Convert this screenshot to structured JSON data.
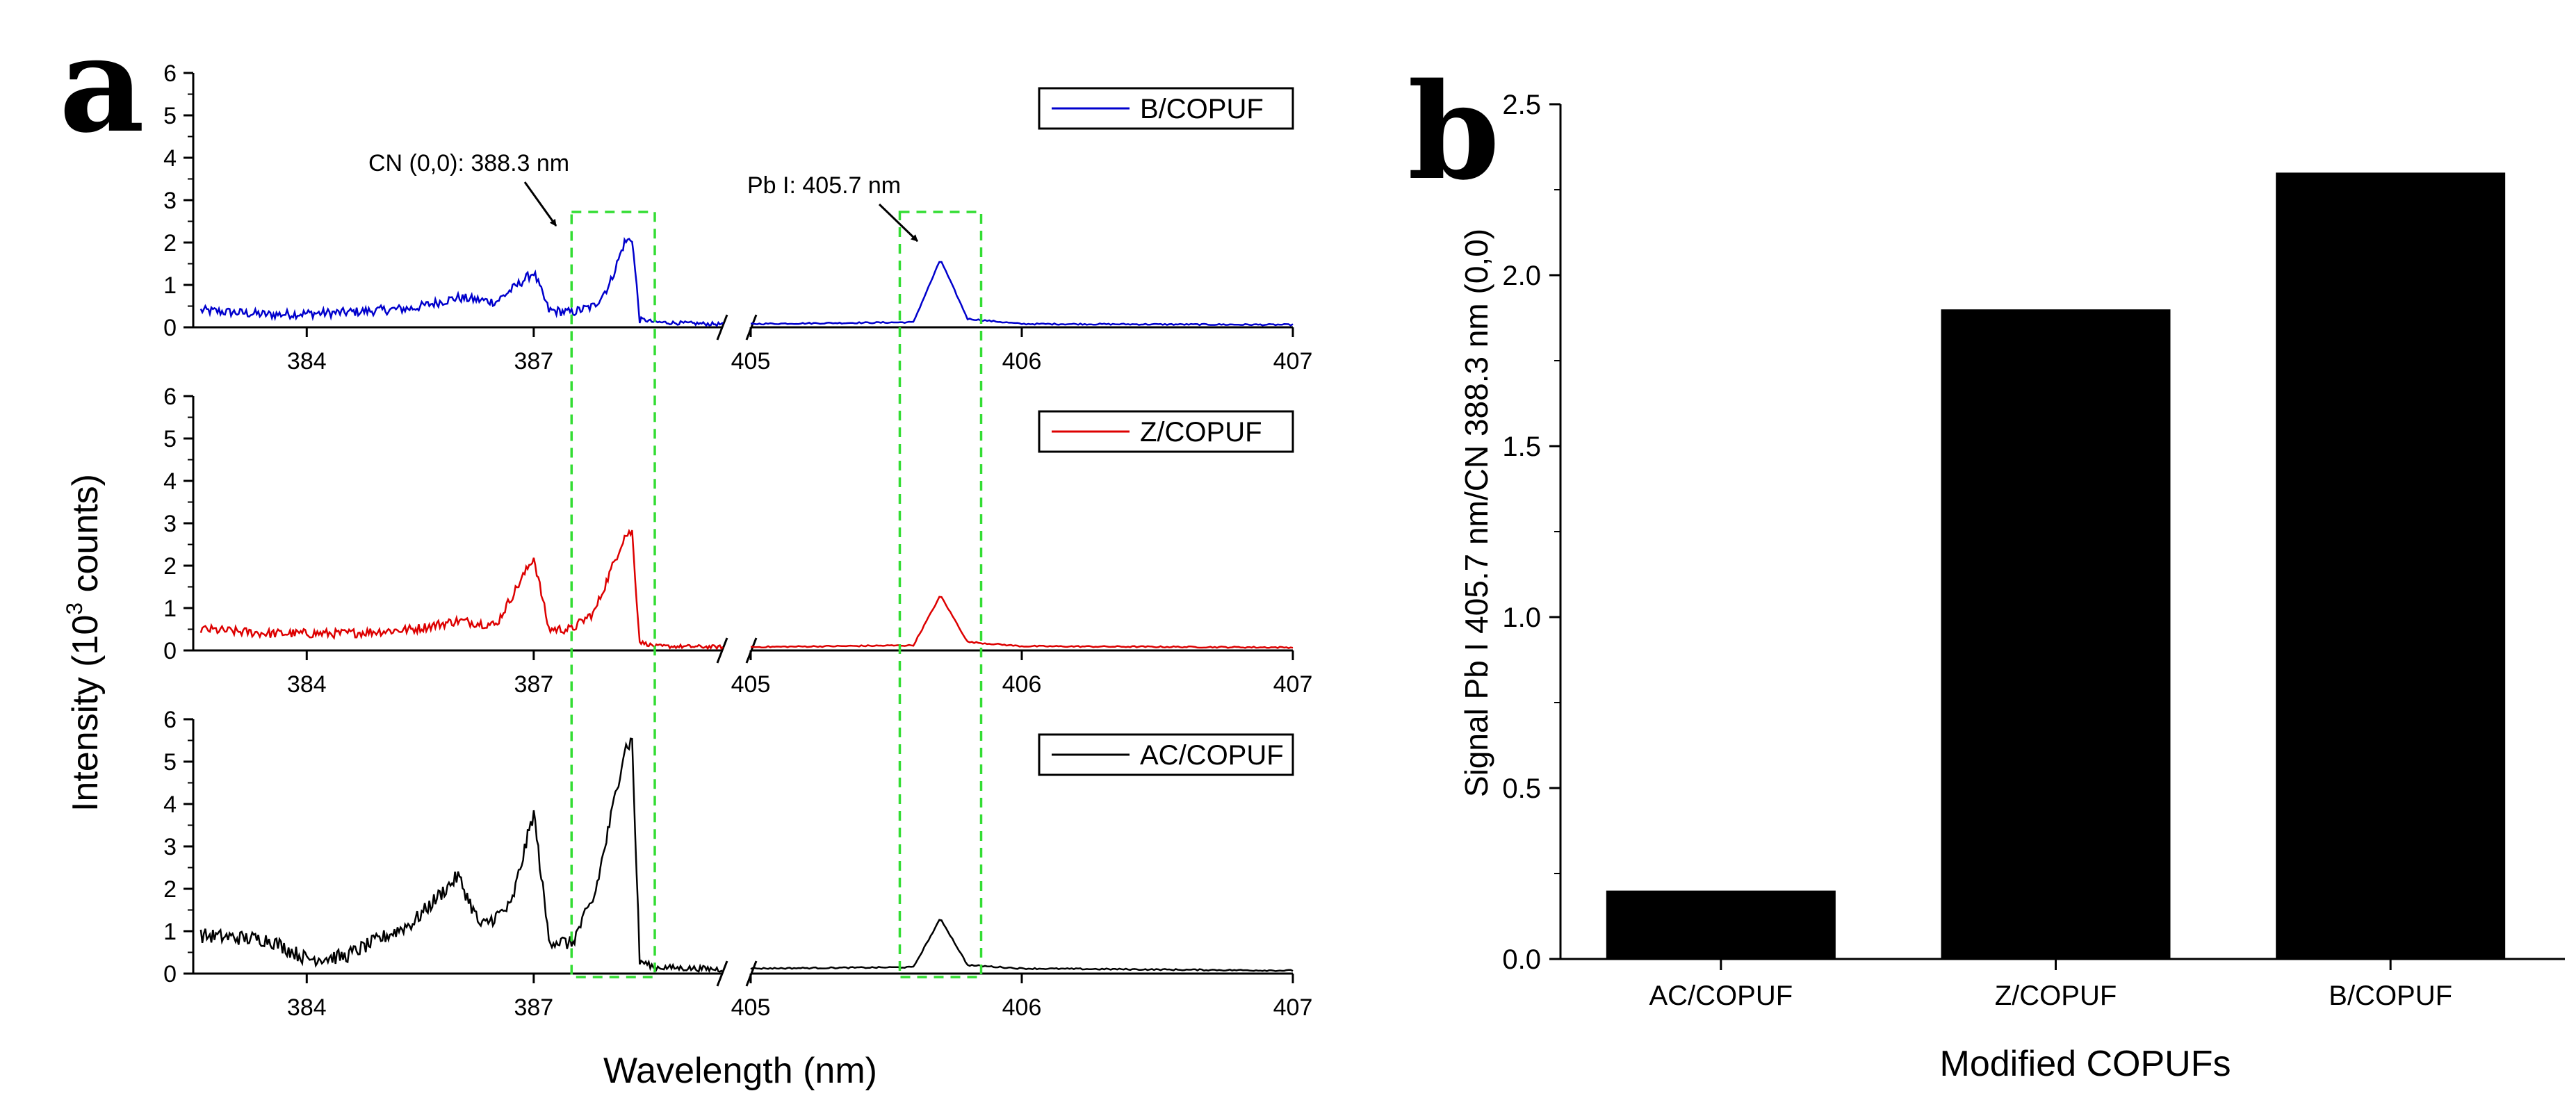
{
  "chart_data": [
    {
      "type": "line",
      "panel_label": "a",
      "xlabel": "Wavelength (nm)",
      "ylabel_prefix": "Intensity (10",
      "ylabel_sup": "3",
      "ylabel_suffix": " counts)",
      "ylim": [
        0,
        6
      ],
      "y_ticks": [
        "0",
        "1",
        "2",
        "3",
        "4",
        "5",
        "6"
      ],
      "x_segments": [
        {
          "range": [
            382.5,
            389.5
          ],
          "ticks": [
            384,
            387
          ]
        },
        {
          "range": [
            405,
            407
          ],
          "ticks": [
            405,
            406,
            407
          ]
        }
      ],
      "x_tick_labels": [
        "384",
        "387",
        "405",
        "406",
        "407"
      ],
      "axis_break": true,
      "annotations": [
        {
          "text": "CN (0,0): 388.3 nm",
          "wavelength": 388.3,
          "highlight_window": [
            387.5,
            388.6
          ]
        },
        {
          "text": "Pb I: 405.7 nm",
          "wavelength": 405.7,
          "highlight_window": [
            405.55,
            405.85
          ]
        }
      ],
      "highlight_color": "#33dd33",
      "series": [
        {
          "name": "B/COPUF",
          "color": "#0000cc",
          "baseline": 0.35,
          "tail": 0.07,
          "points": [
            [
              382.6,
              0.4
            ],
            [
              383.5,
              0.3
            ],
            [
              384.5,
              0.35
            ],
            [
              385.4,
              0.45
            ],
            [
              386.0,
              0.7
            ],
            [
              386.5,
              0.6
            ],
            [
              387.0,
              1.3
            ],
            [
              387.2,
              0.4
            ],
            [
              387.5,
              0.35
            ],
            [
              387.8,
              0.5
            ],
            [
              388.0,
              1.0
            ],
            [
              388.2,
              2.0
            ],
            [
              388.3,
              2.1
            ],
            [
              388.4,
              0.2
            ],
            [
              388.6,
              0.12
            ],
            [
              389.5,
              0.07
            ],
            [
              405.0,
              0.08
            ],
            [
              405.6,
              0.12
            ],
            [
              405.7,
              1.6
            ],
            [
              405.8,
              0.2
            ],
            [
              406.0,
              0.08
            ],
            [
              407.0,
              0.06
            ]
          ]
        },
        {
          "name": "Z/COPUF",
          "color": "#dd0000",
          "baseline": 0.45,
          "tail": 0.08,
          "points": [
            [
              382.6,
              0.5
            ],
            [
              383.5,
              0.4
            ],
            [
              384.5,
              0.4
            ],
            [
              385.4,
              0.5
            ],
            [
              386.0,
              0.7
            ],
            [
              386.5,
              0.6
            ],
            [
              387.0,
              2.2
            ],
            [
              387.2,
              0.5
            ],
            [
              387.5,
              0.5
            ],
            [
              387.8,
              0.9
            ],
            [
              388.0,
              1.8
            ],
            [
              388.2,
              2.7
            ],
            [
              388.3,
              2.8
            ],
            [
              388.4,
              0.2
            ],
            [
              388.6,
              0.1
            ],
            [
              389.5,
              0.08
            ],
            [
              405.0,
              0.08
            ],
            [
              405.6,
              0.12
            ],
            [
              405.7,
              1.3
            ],
            [
              405.8,
              0.2
            ],
            [
              406.0,
              0.1
            ],
            [
              407.0,
              0.07
            ]
          ]
        },
        {
          "name": "AC/COPUF",
          "color": "#000000",
          "baseline": 0.8,
          "tail": 0.1,
          "points": [
            [
              382.6,
              0.9
            ],
            [
              383.5,
              0.8
            ],
            [
              384.0,
              0.35
            ],
            [
              384.5,
              0.4
            ],
            [
              385.4,
              1.2
            ],
            [
              386.0,
              2.3
            ],
            [
              386.3,
              1.1
            ],
            [
              386.7,
              1.6
            ],
            [
              387.0,
              3.8
            ],
            [
              387.2,
              0.8
            ],
            [
              387.5,
              0.7
            ],
            [
              387.8,
              1.8
            ],
            [
              388.0,
              3.5
            ],
            [
              388.2,
              5.3
            ],
            [
              388.3,
              5.5
            ],
            [
              388.4,
              0.3
            ],
            [
              388.6,
              0.15
            ],
            [
              389.5,
              0.1
            ],
            [
              405.0,
              0.12
            ],
            [
              405.6,
              0.15
            ],
            [
              405.7,
              1.3
            ],
            [
              405.8,
              0.2
            ],
            [
              406.0,
              0.12
            ],
            [
              407.0,
              0.07
            ]
          ]
        }
      ]
    },
    {
      "type": "bar",
      "panel_label": "b",
      "categories": [
        "AC/COPUF",
        "Z/COPUF",
        "B/COPUF"
      ],
      "values": [
        0.2,
        1.9,
        2.3
      ],
      "xlabel": "Modified COPUFs",
      "ylabel": "Signal Pb I 405.7 nm/CN 388.3 nm (0,0)",
      "ylim": [
        0,
        2.5
      ],
      "y_ticks": [
        "0.0",
        "0.5",
        "1.0",
        "1.5",
        "2.0",
        "2.5"
      ],
      "bar_color": "#000000"
    }
  ]
}
